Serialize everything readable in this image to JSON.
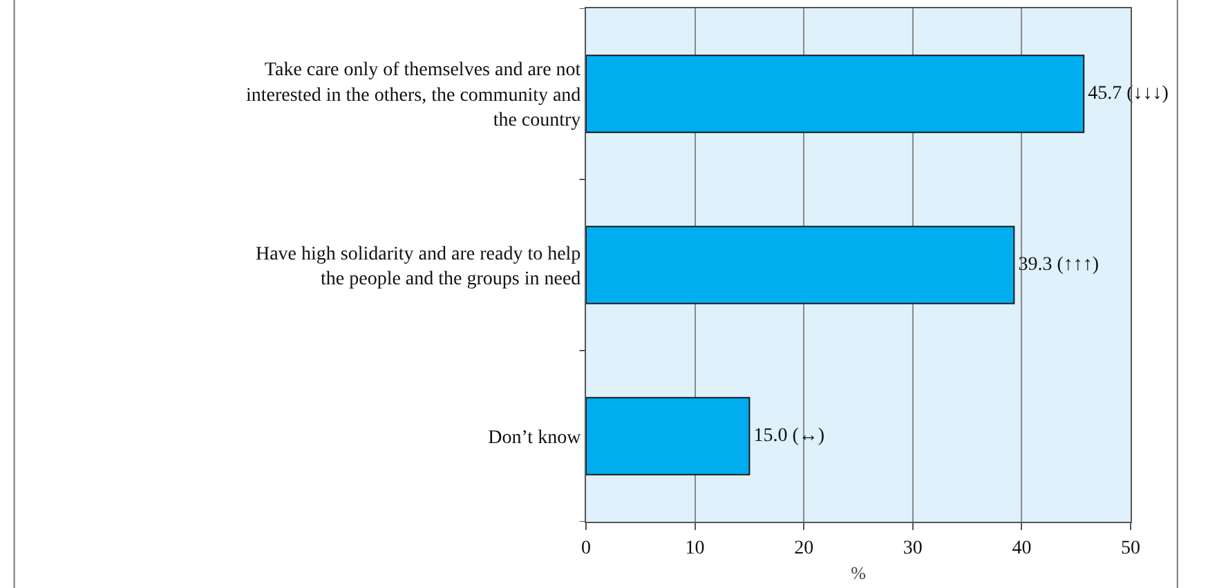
{
  "chart_data": {
    "type": "bar",
    "orientation": "horizontal",
    "categories": [
      "Take care only of themselves and are not interested in the others, the community and the country",
      "Have high solidarity and are ready to help the people and the groups in need",
      "Don’t know"
    ],
    "values": [
      45.7,
      39.3,
      15.0
    ],
    "value_labels": [
      "45.7 (↓↓↓)",
      "39.3 (↑↑↑)",
      "15.0 (↔)"
    ],
    "color": "#00aeef",
    "xlabel": "%",
    "xlim": [
      0,
      50
    ],
    "xticks": [
      0,
      10,
      20,
      30,
      40,
      50
    ],
    "grid": "x"
  }
}
